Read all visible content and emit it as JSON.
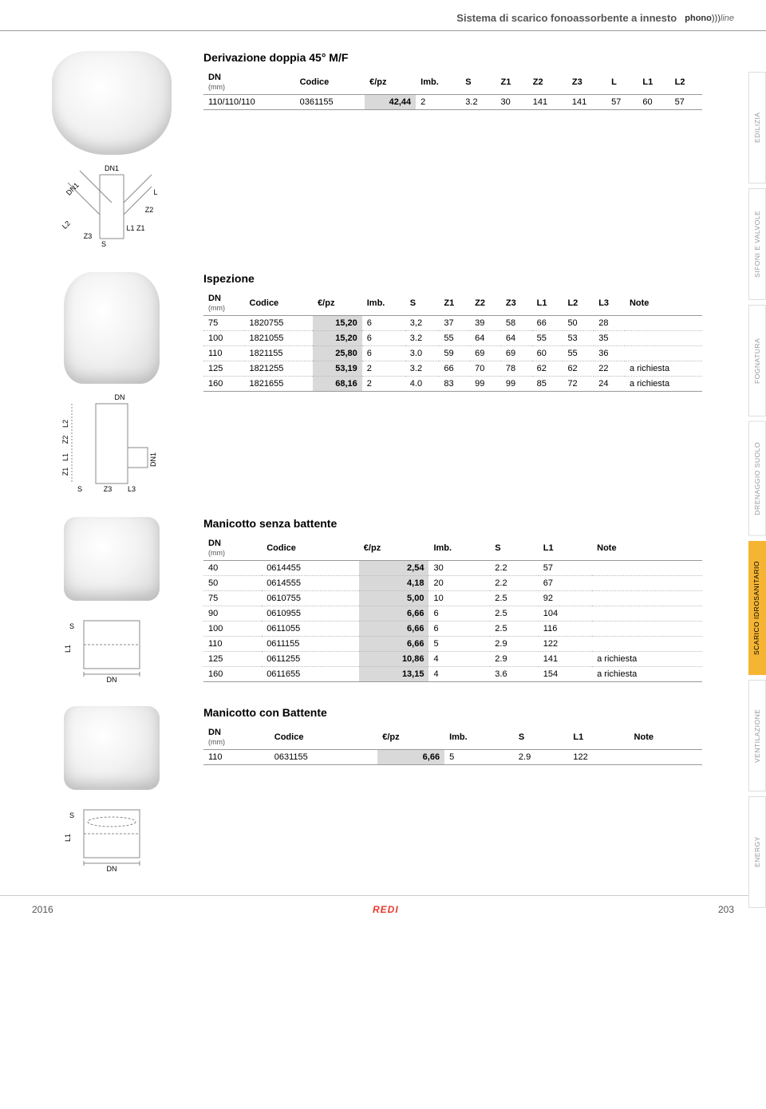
{
  "header": {
    "title": "Sistema di scarico fonoassorbente a innesto",
    "logo_bold": "phono",
    "logo_waves": ")))",
    "logo_italic": "line"
  },
  "side_tabs": [
    {
      "label": "EDILIZIA",
      "active": false
    },
    {
      "label": "SIFONI E VALVOLE",
      "active": false
    },
    {
      "label": "FOGNATURA",
      "active": false
    },
    {
      "label": "DRENAGGIO SUOLO",
      "active": false
    },
    {
      "label": "SCARICO IDROSANITARIO",
      "active": true
    },
    {
      "label": "VENTILAZIONE",
      "active": false
    },
    {
      "label": "ENERGY",
      "active": false
    }
  ],
  "tables": {
    "derivazione": {
      "title": "Derivazione doppia 45° M/F",
      "columns": [
        "DN",
        "Codice",
        "€/pz",
        "Imb.",
        "S",
        "Z1",
        "Z2",
        "Z3",
        "L",
        "L1",
        "L2"
      ],
      "unit": "(mm)",
      "rows": [
        [
          "110/110/110",
          "0361155",
          "42,44",
          "2",
          "3.2",
          "30",
          "141",
          "141",
          "57",
          "60",
          "57"
        ]
      ]
    },
    "ispezione": {
      "title": "Ispezione",
      "columns": [
        "DN",
        "Codice",
        "€/pz",
        "Imb.",
        "S",
        "Z1",
        "Z2",
        "Z3",
        "L1",
        "L2",
        "L3",
        "Note"
      ],
      "unit": "(mm)",
      "rows": [
        [
          "75",
          "1820755",
          "15,20",
          "6",
          "3,2",
          "37",
          "39",
          "58",
          "66",
          "50",
          "28",
          ""
        ],
        [
          "100",
          "1821055",
          "15,20",
          "6",
          "3.2",
          "55",
          "64",
          "64",
          "55",
          "53",
          "35",
          ""
        ],
        [
          "110",
          "1821155",
          "25,80",
          "6",
          "3.0",
          "59",
          "69",
          "69",
          "60",
          "55",
          "36",
          ""
        ],
        [
          "125",
          "1821255",
          "53,19",
          "2",
          "3.2",
          "66",
          "70",
          "78",
          "62",
          "62",
          "22",
          "a richiesta"
        ],
        [
          "160",
          "1821655",
          "68,16",
          "2",
          "4.0",
          "83",
          "99",
          "99",
          "85",
          "72",
          "24",
          "a richiesta"
        ]
      ]
    },
    "senza_battente": {
      "title": "Manicotto senza battente",
      "columns": [
        "DN",
        "Codice",
        "€/pz",
        "Imb.",
        "S",
        "L1",
        "Note"
      ],
      "unit": "(mm)",
      "rows": [
        [
          "40",
          "0614455",
          "2,54",
          "30",
          "2.2",
          "57",
          ""
        ],
        [
          "50",
          "0614555",
          "4,18",
          "20",
          "2.2",
          "67",
          ""
        ],
        [
          "75",
          "0610755",
          "5,00",
          "10",
          "2.5",
          "92",
          ""
        ],
        [
          "90",
          "0610955",
          "6,66",
          "6",
          "2.5",
          "104",
          ""
        ],
        [
          "100",
          "0611055",
          "6,66",
          "6",
          "2.5",
          "116",
          ""
        ],
        [
          "110",
          "0611155",
          "6,66",
          "5",
          "2.9",
          "122",
          ""
        ],
        [
          "125",
          "0611255",
          "10,86",
          "4",
          "2.9",
          "141",
          "a richiesta"
        ],
        [
          "160",
          "0611655",
          "13,15",
          "4",
          "3.6",
          "154",
          "a richiesta"
        ]
      ]
    },
    "con_battente": {
      "title": "Manicotto con Battente",
      "columns": [
        "DN",
        "Codice",
        "€/pz",
        "Imb.",
        "S",
        "L1",
        "Note"
      ],
      "unit": "(mm)",
      "rows": [
        [
          "110",
          "0631155",
          "6,66",
          "5",
          "2.9",
          "122",
          ""
        ]
      ]
    }
  },
  "diagrams": {
    "derivazione_labels": [
      "DN1",
      "DN1",
      "L",
      "Z2",
      "L1 Z1",
      "L2",
      "Z3",
      "S"
    ],
    "ispezione_labels": [
      "DN",
      "L2",
      "Z2",
      "L1",
      "Z1",
      "DN1",
      "S",
      "Z3",
      "L3"
    ],
    "sleeve_labels": [
      "S",
      "L1",
      "DN"
    ]
  },
  "footer": {
    "year": "2016",
    "brand": "REDI",
    "page": "203"
  },
  "colors": {
    "price_bg": "#d9d9d9",
    "accent": "#f5b533",
    "red": "#e63a2e",
    "border": "#999999"
  }
}
